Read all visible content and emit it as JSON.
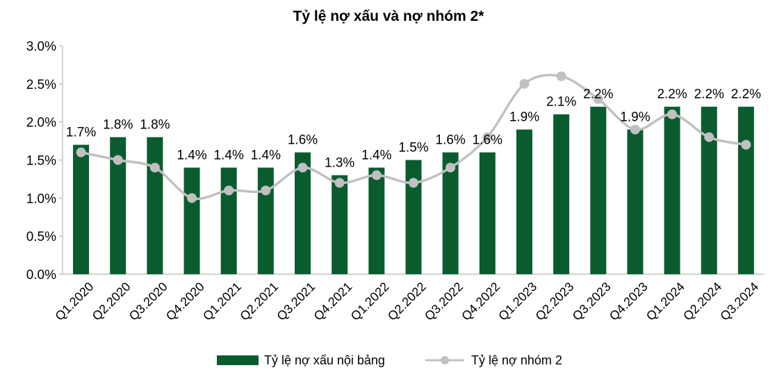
{
  "chart_data": {
    "type": "bar",
    "title": "Tỷ lệ nợ xấu và nợ nhóm 2*",
    "categories": [
      "Q1.2020",
      "Q2.2020",
      "Q3.2020",
      "Q4.2020",
      "Q1.2021",
      "Q2.2021",
      "Q3.2021",
      "Q4.2021",
      "Q1.2022",
      "Q2.2022",
      "Q3.2022",
      "Q4.2022",
      "Q1.2023",
      "Q2.2023",
      "Q3.2023",
      "Q4.2023",
      "Q1.2024",
      "Q2.2024",
      "Q3.2024"
    ],
    "yticks": [
      "0.0%",
      "0.5%",
      "1.0%",
      "1.5%",
      "2.0%",
      "2.5%",
      "3.0%"
    ],
    "ylim": [
      0,
      3.0
    ],
    "series": [
      {
        "name": "Tỷ lệ nợ xấu nội bảng",
        "kind": "bar",
        "color": "#0a5c2f",
        "values": [
          1.7,
          1.8,
          1.8,
          1.4,
          1.4,
          1.4,
          1.6,
          1.3,
          1.4,
          1.5,
          1.6,
          1.6,
          1.9,
          2.1,
          2.2,
          1.9,
          2.2,
          2.2,
          2.2
        ],
        "labels": [
          "1.7%",
          "1.8%",
          "1.8%",
          "1.4%",
          "1.4%",
          "1.4%",
          "1.6%",
          "1.3%",
          "1.4%",
          "1.5%",
          "1.6%",
          "1.6%",
          "1.9%",
          "2.1%",
          "2.2%",
          "1.9%",
          "2.2%",
          "2.2%",
          "2.2%"
        ]
      },
      {
        "name": "Tỷ lệ nợ nhóm 2",
        "kind": "line",
        "color": "#c0c0c0",
        "values": [
          1.6,
          1.5,
          1.4,
          1.0,
          1.1,
          1.1,
          1.4,
          1.2,
          1.3,
          1.2,
          1.4,
          1.8,
          2.5,
          2.6,
          2.3,
          1.9,
          2.1,
          1.8,
          1.7
        ]
      }
    ],
    "legend": "bottom",
    "grid": false
  }
}
